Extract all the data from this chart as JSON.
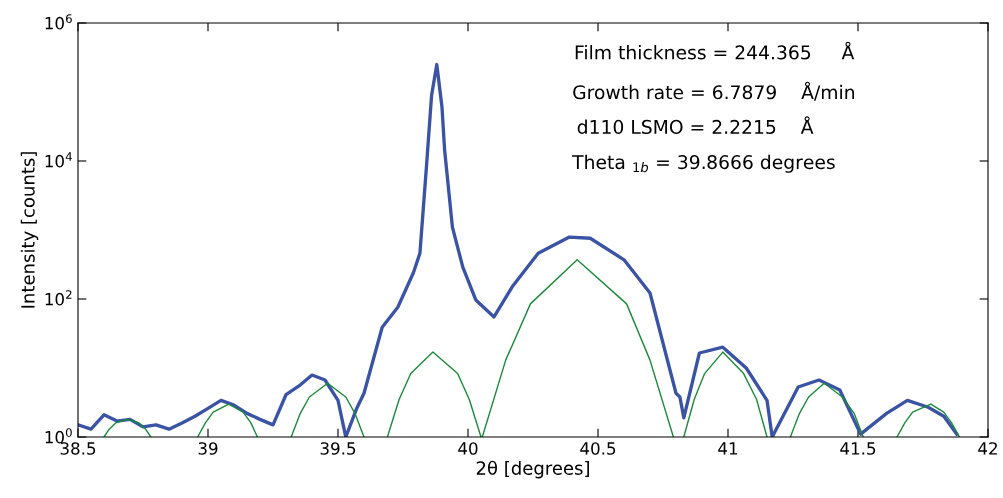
{
  "chart_data": {
    "type": "line",
    "xlabel": "2θ [degrees]",
    "ylabel": "Intensity [counts]",
    "log": "y",
    "grid": false,
    "legend": false,
    "marker": "none",
    "line_style": "solid",
    "xlim": [
      38.5,
      42
    ],
    "xticks": [
      38.5,
      39,
      39.5,
      40,
      40.5,
      41,
      41.5,
      42
    ],
    "ylim": [
      1,
      1000000
    ],
    "yticks": [
      {
        "value": 1,
        "label": "10$^{0}$"
      },
      {
        "value": 100,
        "label": "10$^{2}$"
      },
      {
        "value": 10000,
        "label": "10$^{4}$"
      },
      {
        "value": 1000000,
        "label": "10$^{6}$"
      }
    ],
    "annotations": [
      "Film thickness = 244.365     Å",
      "Growth rate = 6.7879    Å/min",
      "d110 LSMO = 2.2215    Å",
      "Theta $_{1b}$ = 39.8666 degrees"
    ],
    "series": [
      {
        "color": "#3a53a4",
        "x": [
          38.5,
          38.55,
          38.6,
          38.65,
          38.7,
          38.75,
          38.8,
          38.85,
          38.9,
          38.95,
          39.0,
          39.05,
          39.1,
          39.15,
          39.2,
          39.25,
          39.3,
          39.35,
          39.4,
          39.45,
          39.5,
          39.53,
          39.57,
          39.6,
          39.67,
          39.73,
          39.79,
          39.815,
          39.84,
          39.86,
          39.88,
          39.9,
          39.91,
          39.94,
          39.98,
          40.03,
          40.1,
          40.17,
          40.27,
          40.39,
          40.47,
          40.6,
          40.7,
          40.8,
          40.815,
          40.83,
          40.89,
          40.98,
          41.07,
          41.15,
          41.17,
          41.27,
          41.35,
          41.43,
          41.51,
          41.61,
          41.69,
          41.77,
          41.83,
          41.88
        ],
        "values": [
          1.5,
          1.3,
          2.1,
          1.7,
          1.8,
          1.4,
          1.5,
          1.3,
          1.6,
          2.0,
          2.6,
          3.4,
          2.9,
          2.2,
          1.8,
          1.5,
          4.1,
          5.5,
          7.9,
          6.7,
          3.4,
          1.0,
          2.5,
          4.3,
          39,
          76,
          240,
          460,
          8100,
          90000,
          250000,
          60000,
          14500,
          1100,
          290,
          97,
          55,
          150,
          460,
          790,
          760,
          370,
          122,
          4.3,
          3.8,
          1.9,
          16.5,
          20,
          10,
          3.4,
          1.0,
          5.3,
          6.7,
          4.8,
          1.1,
          2.2,
          3.4,
          2.7,
          2.0,
          1.1
        ]
      },
      {
        "color": "#1a8a3a",
        "x": [
          38.6,
          38.62,
          38.645,
          38.69,
          38.735,
          38.76,
          38.78,
          38.87,
          38.96,
          38.99,
          39.02,
          39.08,
          39.135,
          39.165,
          39.19,
          39.25,
          39.32,
          39.355,
          39.39,
          39.46,
          39.53,
          39.565,
          39.6,
          39.65,
          39.69,
          39.735,
          39.78,
          39.865,
          39.96,
          40.005,
          40.05,
          40.052,
          40.055,
          40.145,
          40.24,
          40.42,
          40.61,
          40.7,
          40.79,
          40.81,
          40.83,
          40.87,
          40.91,
          40.98,
          41.06,
          41.11,
          41.15,
          41.2,
          41.24,
          41.275,
          41.31,
          41.37,
          41.44,
          41.485,
          41.52,
          41.58,
          41.65,
          41.68,
          41.71,
          41.78,
          41.83,
          41.86,
          41.89
        ],
        "values": [
          1,
          1.3,
          1.6,
          1.8,
          1.6,
          1.3,
          1,
          null,
          1,
          1.6,
          2.3,
          3.0,
          2.3,
          1.6,
          1,
          null,
          1,
          2.2,
          3.8,
          6.0,
          3.8,
          2.2,
          1,
          null,
          1,
          3.5,
          8.3,
          17,
          8.3,
          3.5,
          1,
          null,
          1,
          13,
          85,
          370,
          85,
          13,
          1,
          null,
          1,
          3.5,
          8.3,
          17,
          8.3,
          3.5,
          1,
          null,
          1,
          2.2,
          3.8,
          6,
          3.8,
          2.2,
          1,
          null,
          1,
          1.6,
          2.3,
          3.0,
          2.3,
          1.6,
          1
        ]
      }
    ]
  }
}
